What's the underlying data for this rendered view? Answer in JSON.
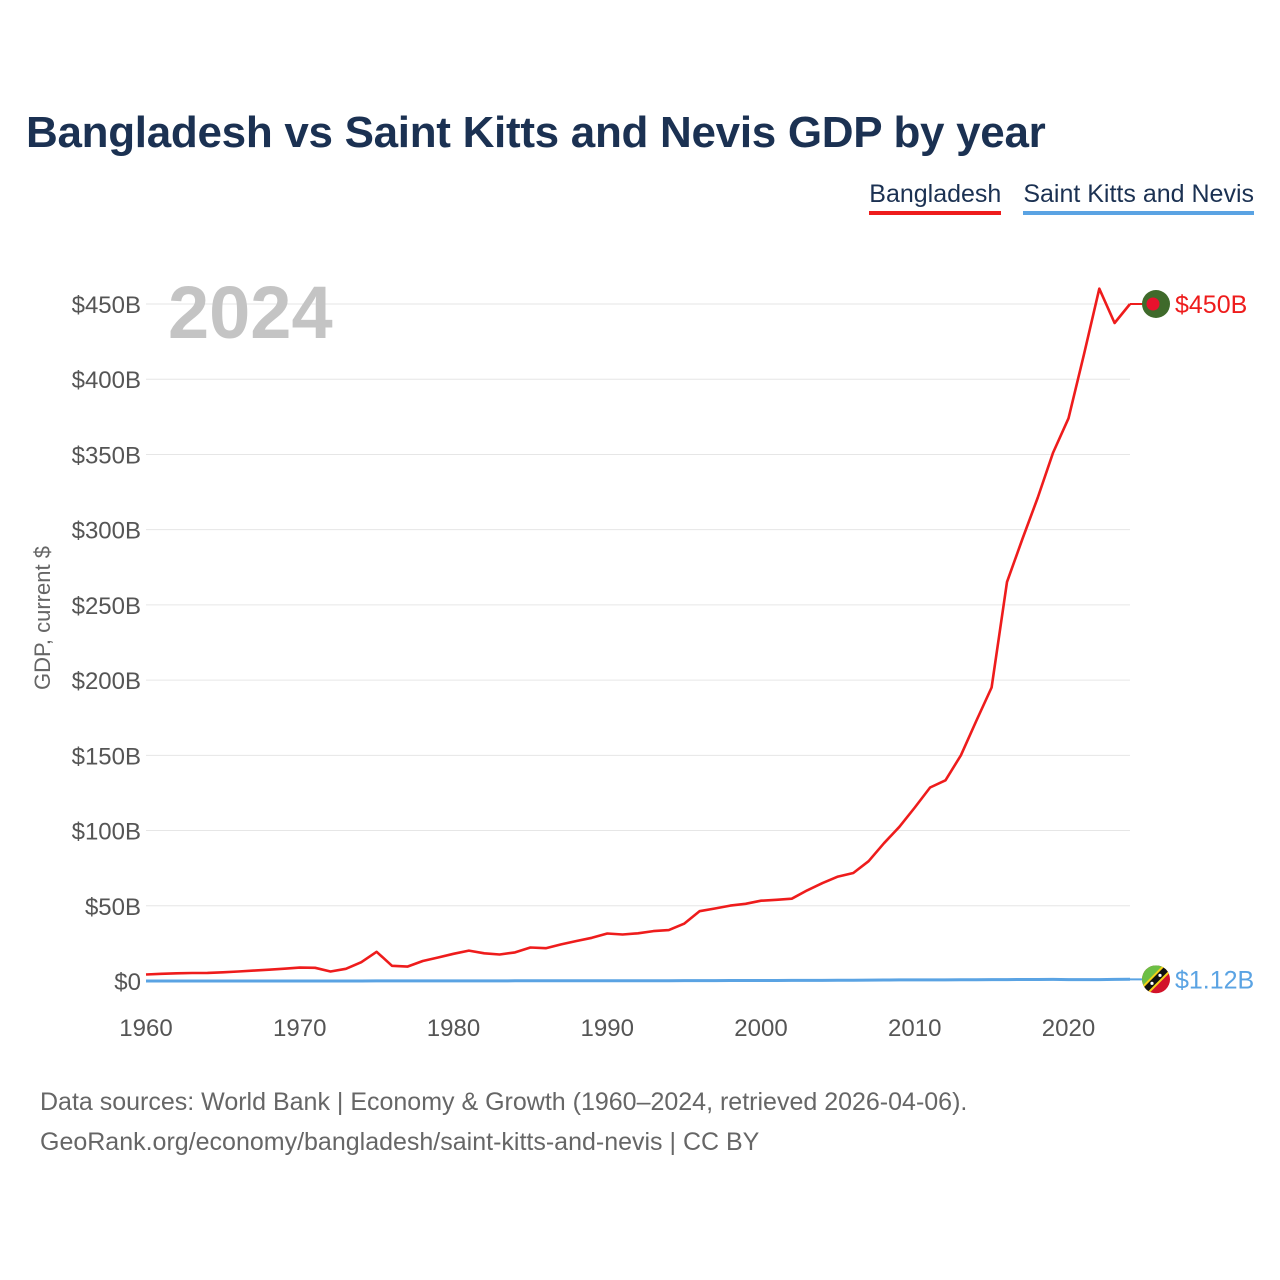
{
  "header": {
    "title": "Bangladesh vs Saint Kitts and Nevis GDP by year"
  },
  "legend": {
    "items": [
      "Bangladesh",
      "Saint Kitts and Nevis"
    ]
  },
  "footer": {
    "source_line": "Data sources: World Bank | Economy & Growth (1960–2024, retrieved 2026-04-06).",
    "url_line": "GeoRank.org/economy/bangladesh/saint-kitts-and-nevis | CC BY"
  },
  "colors": {
    "bangladesh": "#ee1c1c",
    "skn": "#5aa3e3",
    "grid": "#e6e6e6",
    "year_watermark": "#c4c4c4"
  },
  "chart_data": {
    "type": "line",
    "title": "Bangladesh vs Saint Kitts and Nevis GDP by year",
    "ylabel": "GDP, current $",
    "xlabel": "",
    "year_label": "2024",
    "xlim": [
      1960,
      2024
    ],
    "ylim": [
      0,
      450
    ],
    "y_unit": "billions USD",
    "x_ticks": [
      1960,
      1970,
      1980,
      1990,
      2000,
      2010,
      2020
    ],
    "y_ticks": [
      {
        "value": 0,
        "label": "$0"
      },
      {
        "value": 50,
        "label": "$50B"
      },
      {
        "value": 100,
        "label": "$100B"
      },
      {
        "value": 150,
        "label": "$150B"
      },
      {
        "value": 200,
        "label": "$200B"
      },
      {
        "value": 250,
        "label": "$250B"
      },
      {
        "value": 300,
        "label": "$300B"
      },
      {
        "value": 350,
        "label": "$350B"
      },
      {
        "value": 400,
        "label": "$400B"
      },
      {
        "value": 450,
        "label": "$450B"
      }
    ],
    "x": [
      1960,
      1961,
      1962,
      1963,
      1964,
      1965,
      1966,
      1967,
      1968,
      1969,
      1970,
      1971,
      1972,
      1973,
      1974,
      1975,
      1976,
      1977,
      1978,
      1979,
      1980,
      1981,
      1982,
      1983,
      1984,
      1985,
      1986,
      1987,
      1988,
      1989,
      1990,
      1991,
      1992,
      1993,
      1994,
      1995,
      1996,
      1997,
      1998,
      1999,
      2000,
      2001,
      2002,
      2003,
      2004,
      2005,
      2006,
      2007,
      2008,
      2009,
      2010,
      2011,
      2012,
      2013,
      2014,
      2015,
      2016,
      2017,
      2018,
      2019,
      2020,
      2021,
      2022,
      2023,
      2024
    ],
    "series": [
      {
        "name": "Bangladesh",
        "color": "#ee1c1c",
        "end_label": "$450B",
        "values": [
          4.3,
          4.8,
          5.1,
          5.3,
          5.4,
          5.8,
          6.3,
          6.9,
          7.5,
          8.2,
          8.9,
          8.8,
          6.3,
          8.1,
          12.5,
          19.4,
          10.1,
          9.6,
          13.3,
          15.6,
          18.1,
          20.2,
          18.4,
          17.6,
          19.0,
          22.3,
          21.8,
          24.3,
          26.6,
          28.7,
          31.6,
          30.9,
          31.7,
          33.2,
          33.8,
          38.1,
          46.4,
          48.2,
          50.1,
          51.3,
          53.4,
          54.0,
          54.7,
          60.2,
          65.1,
          69.4,
          71.8,
          79.6,
          91.6,
          102.5,
          115.3,
          128.6,
          133.4,
          150.0,
          172.9,
          195.1,
          265.2,
          293.8,
          321.4,
          351.2,
          374.0,
          416.3,
          460.2,
          437.4,
          450.0
        ]
      },
      {
        "name": "Saint Kitts and Nevis",
        "color": "#5aa3e3",
        "end_label": "$1.12B",
        "values": [
          0.01,
          0.01,
          0.01,
          0.01,
          0.01,
          0.01,
          0.01,
          0.01,
          0.01,
          0.02,
          0.02,
          0.02,
          0.03,
          0.03,
          0.03,
          0.04,
          0.04,
          0.05,
          0.05,
          0.06,
          0.07,
          0.08,
          0.09,
          0.09,
          0.1,
          0.1,
          0.11,
          0.13,
          0.15,
          0.17,
          0.16,
          0.17,
          0.19,
          0.21,
          0.22,
          0.24,
          0.27,
          0.29,
          0.3,
          0.32,
          0.34,
          0.36,
          0.37,
          0.38,
          0.41,
          0.47,
          0.52,
          0.58,
          0.66,
          0.7,
          0.72,
          0.74,
          0.73,
          0.79,
          0.85,
          0.92,
          0.95,
          0.97,
          1.02,
          1.06,
          0.91,
          0.93,
          0.96,
          1.04,
          1.12
        ]
      }
    ]
  }
}
